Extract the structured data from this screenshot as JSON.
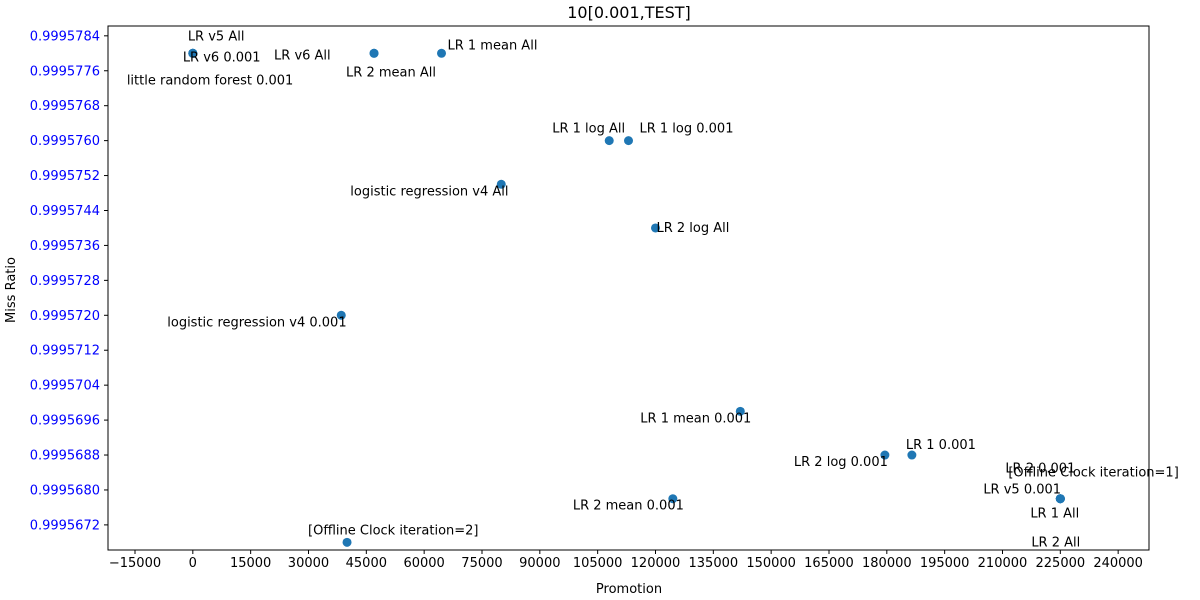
{
  "chart_data": {
    "type": "scatter",
    "title": "10[0.001,TEST]",
    "xlabel": "Promotion",
    "ylabel": "Miss Ratio",
    "xlim": [
      -22000,
      248000
    ],
    "ylim": [
      0.999566625,
      0.999578625
    ],
    "x_ticks": [
      -15000,
      0,
      15000,
      30000,
      45000,
      60000,
      75000,
      90000,
      105000,
      120000,
      135000,
      150000,
      165000,
      180000,
      195000,
      210000,
      225000,
      240000
    ],
    "x_tick_labels": [
      "−15000",
      "0",
      "15000",
      "30000",
      "45000",
      "60000",
      "75000",
      "90000",
      "105000",
      "120000",
      "135000",
      "150000",
      "165000",
      "180000",
      "195000",
      "210000",
      "225000",
      "240000"
    ],
    "y_ticks": [
      0.9995672,
      0.999568,
      0.9995688,
      0.9995696,
      0.9995704,
      0.9995712,
      0.999572,
      0.9995728,
      0.9995736,
      0.9995744,
      0.9995752,
      0.999576,
      0.9995768,
      0.9995776,
      0.9995784
    ],
    "y_tick_labels": [
      "0.9995672",
      "0.9995680",
      "0.9995688",
      "0.9995696",
      "0.9995704",
      "0.9995712",
      "0.9995720",
      "0.9995728",
      "0.9995736",
      "0.9995744",
      "0.9995752",
      "0.9995760",
      "0.9995768",
      "0.9995776",
      "0.9995784"
    ],
    "grid": false,
    "point_color": "#1f77b4",
    "y_tick_label_color": "#0000ff",
    "points": [
      {
        "x": 0,
        "y": 0.999578,
        "label": "LR v5 All"
      },
      {
        "x": 0,
        "y": 0.999578,
        "label": "LR v6 0.001"
      },
      {
        "x": 0,
        "y": 0.999578,
        "label": "little random forest 0.001"
      },
      {
        "x": 47000,
        "y": 0.999578,
        "label": "LR v6 All"
      },
      {
        "x": 47000,
        "y": 0.999578,
        "label": "LR 2 mean All"
      },
      {
        "x": 64500,
        "y": 0.999578,
        "label": "LR 1 mean All"
      },
      {
        "x": 108000,
        "y": 0.999576,
        "label": "LR 1 log All"
      },
      {
        "x": 113000,
        "y": 0.999576,
        "label": "LR 1 log 0.001"
      },
      {
        "x": 80000,
        "y": 0.999575,
        "label": "logistic regression v4 All"
      },
      {
        "x": 120000,
        "y": 0.999574,
        "label": "LR 2 log All"
      },
      {
        "x": 38500,
        "y": 0.999572,
        "label": "logistic regression v4 0.001"
      },
      {
        "x": 142000,
        "y": 0.9995698,
        "label": "LR 1 mean 0.001"
      },
      {
        "x": 179500,
        "y": 0.9995688,
        "label": "LR 2 log 0.001"
      },
      {
        "x": 186500,
        "y": 0.9995688,
        "label": "LR 1 0.001"
      },
      {
        "x": 225000,
        "y": 0.9995678,
        "label": "LR 2 0.001"
      },
      {
        "x": 225000,
        "y": 0.9995678,
        "label": "[Offline Clock iteration=1]"
      },
      {
        "x": 225000,
        "y": 0.9995678,
        "label": "LR v5 0.001"
      },
      {
        "x": 225000,
        "y": 0.9995678,
        "label": "LR 1 All"
      },
      {
        "x": 225000,
        "y": 0.9995678,
        "label": "LR 2 All"
      },
      {
        "x": 124500,
        "y": 0.9995678,
        "label": "LR 2 mean 0.001"
      },
      {
        "x": 40000,
        "y": 0.9995668,
        "label": "[Offline Clock iteration=2]"
      }
    ]
  }
}
